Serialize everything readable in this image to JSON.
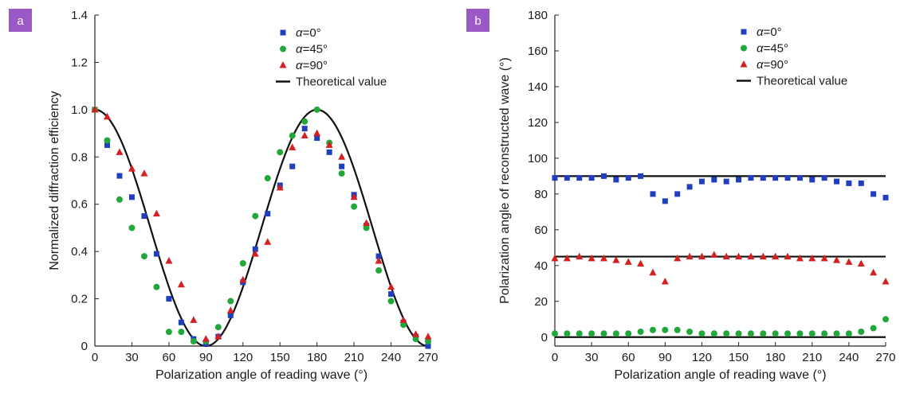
{
  "chart_data": [
    {
      "panel_label": "a",
      "type": "scatter",
      "xlabel": "Polarization angle of reading wave (°)",
      "ylabel": "Normalized diffraction efficiency",
      "xlim": [
        0,
        270
      ],
      "ylim": [
        0,
        1.4
      ],
      "xticks": [
        0,
        30,
        60,
        90,
        120,
        150,
        180,
        210,
        240,
        270
      ],
      "yticks": [
        0,
        0.2,
        0.4,
        0.6,
        0.8,
        1.0,
        1.2,
        1.4
      ],
      "ytick_labels": [
        "0",
        "0.2",
        "0.4",
        "0.6",
        "0.8",
        "1.0",
        "1.2",
        "1.4"
      ],
      "grid": false,
      "legend_position": "top-right",
      "series": [
        {
          "name": "α=0°",
          "name_italic": "α",
          "name_rest": "=0°",
          "marker": "square",
          "color": "#1f3fbf",
          "x": [
            0,
            10,
            20,
            30,
            40,
            50,
            60,
            70,
            80,
            90,
            100,
            110,
            120,
            130,
            140,
            150,
            160,
            170,
            180,
            190,
            200,
            210,
            220,
            230,
            240,
            250,
            260,
            270
          ],
          "y": [
            1.0,
            0.85,
            0.72,
            0.63,
            0.55,
            0.39,
            0.2,
            0.1,
            0.03,
            0.01,
            0.04,
            0.13,
            0.27,
            0.41,
            0.56,
            0.68,
            0.76,
            0.92,
            0.88,
            0.82,
            0.76,
            0.64,
            0.51,
            0.38,
            0.22,
            0.1,
            0.04,
            0.0
          ]
        },
        {
          "name": "α=45°",
          "name_italic": "α",
          "name_rest": "=45°",
          "marker": "circle",
          "color": "#22a83a",
          "x": [
            0,
            10,
            20,
            30,
            40,
            50,
            60,
            70,
            80,
            90,
            100,
            110,
            120,
            130,
            140,
            150,
            160,
            170,
            180,
            190,
            200,
            210,
            220,
            230,
            240,
            250,
            260,
            270
          ],
          "y": [
            1.0,
            0.87,
            0.62,
            0.5,
            0.38,
            0.25,
            0.06,
            0.06,
            0.02,
            0.02,
            0.08,
            0.19,
            0.35,
            0.55,
            0.71,
            0.82,
            0.89,
            0.95,
            1.0,
            0.86,
            0.73,
            0.59,
            0.5,
            0.32,
            0.19,
            0.09,
            0.03,
            0.02
          ]
        },
        {
          "name": "α=90°",
          "name_italic": "α",
          "name_rest": "=90°",
          "marker": "triangle",
          "color": "#d42020",
          "x": [
            0,
            10,
            20,
            30,
            40,
            50,
            60,
            70,
            80,
            90,
            100,
            110,
            120,
            130,
            140,
            150,
            160,
            170,
            180,
            190,
            200,
            210,
            220,
            230,
            240,
            250,
            260,
            270
          ],
          "y": [
            1.0,
            0.97,
            0.82,
            0.75,
            0.73,
            0.56,
            0.36,
            0.26,
            0.11,
            0.03,
            0.04,
            0.15,
            0.28,
            0.39,
            0.44,
            0.67,
            0.84,
            0.89,
            0.9,
            0.85,
            0.8,
            0.63,
            0.52,
            0.36,
            0.25,
            0.11,
            0.05,
            0.04
          ]
        },
        {
          "name": "Theoretical value",
          "name_italic": "",
          "name_rest": "Theoretical value",
          "marker": "line",
          "color": "#111111",
          "function": "cos^2(x)",
          "x_range": [
            0,
            270
          ]
        }
      ]
    },
    {
      "panel_label": "b",
      "type": "scatter",
      "xlabel": "Polarization angle of reading wave (°)",
      "ylabel": "Polarization angle of reconstructed wave (°)",
      "xlim": [
        0,
        270
      ],
      "ylim": [
        -5,
        180
      ],
      "xticks": [
        0,
        30,
        60,
        90,
        120,
        150,
        180,
        210,
        240,
        270
      ],
      "yticks": [
        0,
        20,
        40,
        60,
        80,
        100,
        120,
        140,
        160,
        180
      ],
      "ytick_labels": [
        "0",
        "20",
        "40",
        "60",
        "80",
        "100",
        "120",
        "140",
        "160",
        "180"
      ],
      "grid": false,
      "legend_position": "top-right",
      "series": [
        {
          "name": "α=0°",
          "name_italic": "α",
          "name_rest": "=0°",
          "marker": "square",
          "color": "#1f3fbf",
          "x": [
            0,
            10,
            20,
            30,
            40,
            50,
            60,
            70,
            80,
            90,
            100,
            110,
            120,
            130,
            140,
            150,
            160,
            170,
            180,
            190,
            200,
            210,
            220,
            230,
            240,
            250,
            260,
            270
          ],
          "y": [
            89,
            89,
            89,
            89,
            90,
            88,
            89,
            90,
            80,
            76,
            80,
            84,
            87,
            88,
            87,
            88,
            89,
            89,
            89,
            89,
            89,
            88,
            89,
            87,
            86,
            86,
            80,
            78
          ]
        },
        {
          "name": "α=45°",
          "name_italic": "α",
          "name_rest": "=45°",
          "marker": "circle",
          "color": "#22a83a",
          "x": [
            0,
            10,
            20,
            30,
            40,
            50,
            60,
            70,
            80,
            90,
            100,
            110,
            120,
            130,
            140,
            150,
            160,
            170,
            180,
            190,
            200,
            210,
            220,
            230,
            240,
            250,
            260,
            270
          ],
          "y": [
            2,
            2,
            2,
            2,
            2,
            2,
            2,
            3,
            4,
            4,
            4,
            3,
            2,
            2,
            2,
            2,
            2,
            2,
            2,
            2,
            2,
            2,
            2,
            2,
            2,
            3,
            5,
            10
          ]
        },
        {
          "name": "α=90°",
          "name_italic": "α",
          "name_rest": "=90°",
          "marker": "triangle",
          "color": "#d42020",
          "x": [
            0,
            10,
            20,
            30,
            40,
            50,
            60,
            70,
            80,
            90,
            100,
            110,
            120,
            130,
            140,
            150,
            160,
            170,
            180,
            190,
            200,
            210,
            220,
            230,
            240,
            250,
            260,
            270
          ],
          "y": [
            44,
            44,
            45,
            44,
            44,
            43,
            42,
            41,
            36,
            31,
            44,
            45,
            45,
            46,
            45,
            45,
            45,
            45,
            45,
            45,
            44,
            44,
            44,
            43,
            42,
            41,
            36,
            31
          ]
        },
        {
          "name": "Theoretical value",
          "name_italic": "",
          "name_rest": "Theoretical value",
          "marker": "line",
          "color": "#111111",
          "hlines": [
            90,
            45,
            0
          ]
        }
      ]
    }
  ],
  "colors": {
    "badge": "#9b59c6",
    "axis": "#222222"
  }
}
